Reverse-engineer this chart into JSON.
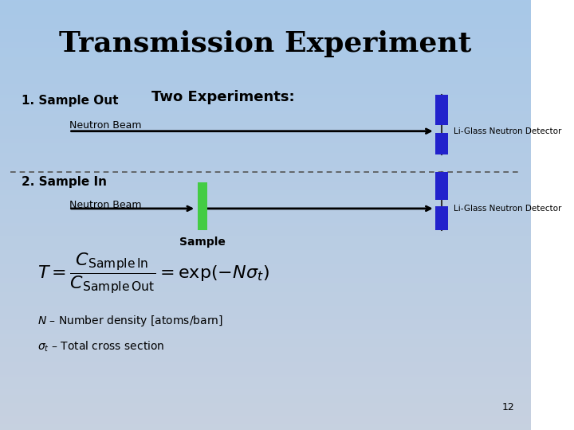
{
  "title": "Transmission Experiment",
  "bg_color_top": "#a8c8e8",
  "bg_color_bottom": "#c8d8e8",
  "title_fontsize": 26,
  "section1_label": "1. Sample Out",
  "section2_label": "2. Sample In",
  "beam_label": "Neutron Beam",
  "detector_label": "Li-Glass Neutron Detector",
  "two_experiments_label": "Two Experiments:",
  "sample_label": "Sample",
  "formula_line1": "$T = \\dfrac{C_{\\mathrm{Sample\\,In}}}{C_{\\mathrm{Sample\\,Out}}} = \\exp(-N\\sigma_t)$",
  "n_label": "$N$ – Number density [atoms/barn]",
  "sigma_label": "$\\sigma_t$ – Total cross section",
  "arrow_color": "#000000",
  "detector_color": "#2222cc",
  "sample_color": "#44cc44",
  "dashed_line_color": "#555555",
  "page_number": "12"
}
